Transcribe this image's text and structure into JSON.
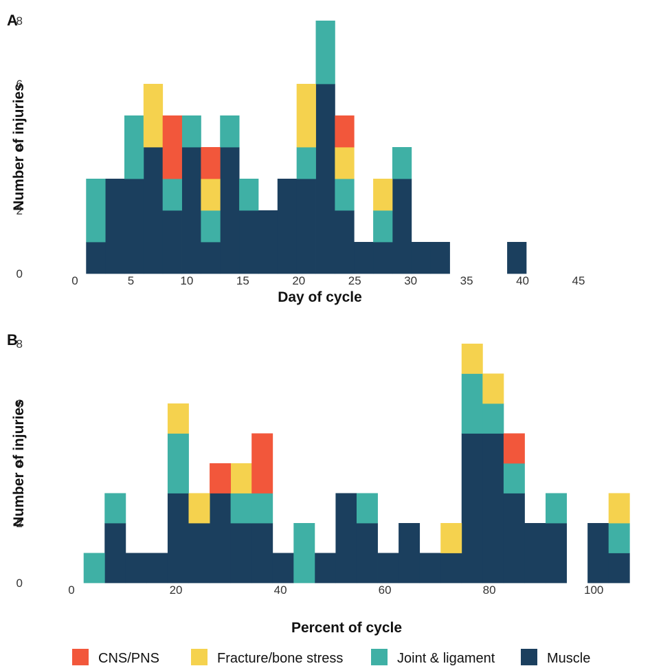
{
  "colors": {
    "CNS/PNS": "#f2573b",
    "Fracture/bone stress": "#f5d24e",
    "Joint & ligament": "#3fb0a5",
    "Muscle": "#1b3f5e"
  },
  "legend": [
    "CNS/PNS",
    "Fracture/bone stress",
    "Joint & ligament",
    "Muscle"
  ],
  "chart_data": [
    {
      "type": "bar",
      "stacked": true,
      "panel_label": "A",
      "xlabel": "Day of cycle",
      "ylabel": "Number of injuries",
      "xlim": [
        0,
        45
      ],
      "ylim": [
        0,
        8
      ],
      "xticks": [
        0,
        5,
        10,
        15,
        20,
        25,
        30,
        35,
        40,
        45
      ],
      "yticks": [
        0,
        2,
        4,
        6,
        8
      ],
      "bin_edges": [
        1.0,
        2.71,
        4.42,
        6.13,
        7.84,
        9.55,
        11.26,
        12.97,
        14.68,
        16.39,
        18.1,
        19.81,
        21.52,
        23.23,
        24.94,
        26.65,
        28.36,
        30.07,
        31.78,
        33.49,
        35.2,
        36.91,
        38.62,
        40.33,
        42.04
      ],
      "series": [
        {
          "name": "Muscle",
          "values": [
            1,
            3,
            3,
            4,
            2,
            4,
            1,
            4,
            2,
            2,
            3,
            3,
            6,
            2,
            1,
            1,
            3,
            1,
            1,
            0,
            0,
            0,
            1
          ]
        },
        {
          "name": "Joint & ligament",
          "values": [
            2,
            0,
            2,
            0,
            1,
            1,
            1,
            1,
            1,
            0,
            0,
            1,
            2,
            1,
            0,
            1,
            1,
            0,
            0,
            0,
            0,
            0,
            0
          ]
        },
        {
          "name": "Fracture/bone stress",
          "values": [
            0,
            0,
            0,
            2,
            0,
            0,
            1,
            0,
            0,
            0,
            0,
            2,
            0,
            1,
            0,
            1,
            0,
            0,
            0,
            0,
            0,
            0,
            0
          ]
        },
        {
          "name": "CNS/PNS",
          "values": [
            0,
            0,
            0,
            0,
            2,
            0,
            1,
            0,
            0,
            0,
            0,
            0,
            0,
            1,
            0,
            0,
            0,
            0,
            0,
            0,
            0,
            0,
            0
          ]
        }
      ]
    },
    {
      "type": "bar",
      "stacked": true,
      "panel_label": "B",
      "xlabel": "Percent of cycle",
      "ylabel": "Number of injuries",
      "xlim": [
        0,
        108
      ],
      "ylim": [
        0,
        8
      ],
      "xticks": [
        0,
        20,
        40,
        60,
        80,
        100
      ],
      "yticks": [
        0,
        2,
        4,
        6,
        8
      ],
      "bin_edges": [
        2.33,
        6.35,
        10.37,
        14.39,
        18.41,
        22.43,
        26.45,
        30.47,
        34.49,
        38.51,
        42.53,
        46.55,
        50.57,
        54.59,
        58.61,
        62.63,
        66.65,
        70.67,
        74.69,
        78.71,
        82.73,
        86.75,
        90.77,
        94.79,
        98.81,
        102.83,
        106.85
      ],
      "series": [
        {
          "name": "Muscle",
          "values": [
            0,
            2,
            1,
            1,
            3,
            2,
            3,
            2,
            2,
            1,
            0,
            1,
            3,
            2,
            1,
            2,
            1,
            1,
            5,
            5,
            3,
            2,
            2,
            0,
            2,
            1
          ]
        },
        {
          "name": "Joint & ligament",
          "values": [
            1,
            1,
            0,
            0,
            2,
            0,
            0,
            1,
            1,
            0,
            2,
            0,
            0,
            1,
            0,
            0,
            0,
            0,
            2,
            1,
            1,
            0,
            1,
            0,
            0,
            1
          ]
        },
        {
          "name": "Fracture/bone stress",
          "values": [
            0,
            0,
            0,
            0,
            1,
            1,
            0,
            1,
            0,
            0,
            0,
            0,
            0,
            0,
            0,
            0,
            0,
            1,
            1,
            1,
            0,
            0,
            0,
            0,
            0,
            1
          ]
        },
        {
          "name": "CNS/PNS",
          "values": [
            0,
            0,
            0,
            0,
            0,
            0,
            1,
            0,
            2,
            0,
            0,
            0,
            0,
            0,
            0,
            0,
            0,
            0,
            0,
            0,
            1,
            0,
            0,
            0,
            0,
            0
          ]
        }
      ]
    }
  ]
}
